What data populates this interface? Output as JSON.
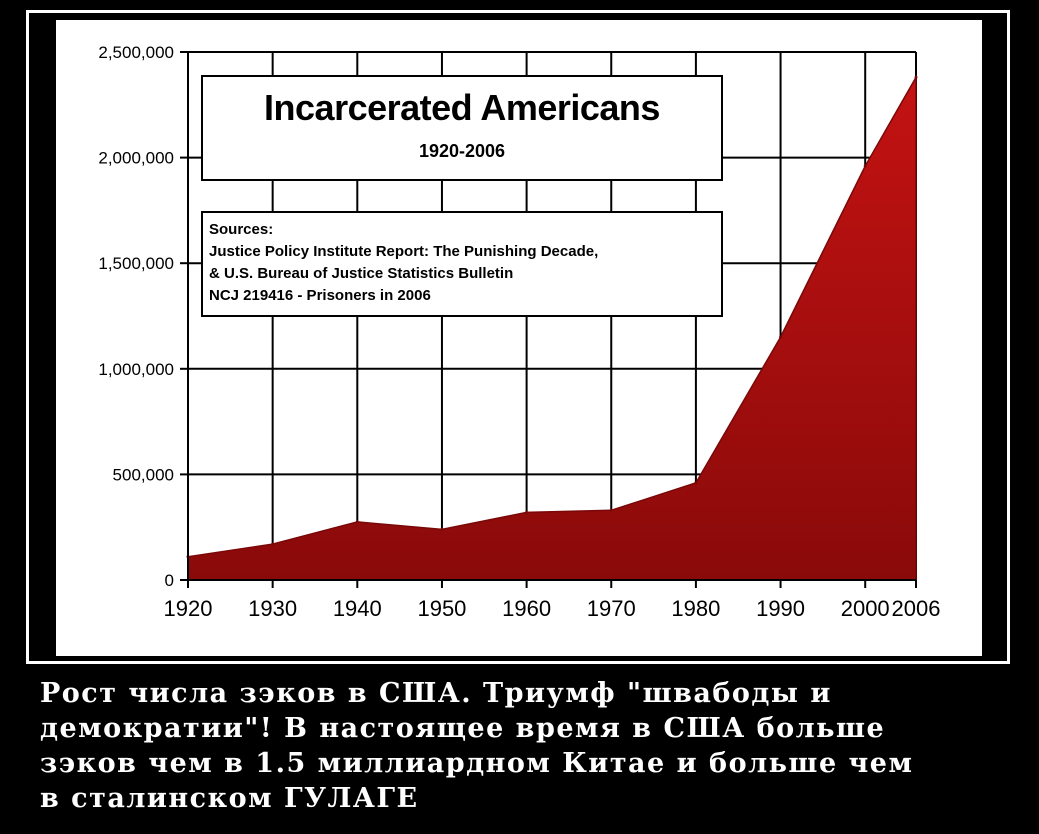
{
  "chart_data": {
    "type": "area",
    "title": "Incarcerated Americans",
    "subtitle": "1920-2006",
    "x": [
      1920,
      1930,
      1940,
      1950,
      1960,
      1970,
      1980,
      1990,
      2000,
      2006
    ],
    "values": [
      110000,
      170000,
      275000,
      240000,
      320000,
      330000,
      460000,
      1150000,
      1960000,
      2380000
    ],
    "ylim": [
      0,
      2500000
    ],
    "y_ticks": [
      0,
      500000,
      1000000,
      1500000,
      2000000,
      2500000
    ],
    "y_tick_labels": [
      "0",
      "500,000",
      "1,000,000",
      "1,500,000",
      "2,000,000",
      "2,500,000"
    ],
    "x_tick_labels": [
      "1920",
      "1930",
      "1940",
      "1950",
      "1960",
      "1970",
      "1980",
      "1990",
      "2000",
      "2006"
    ],
    "grid": true,
    "colors": {
      "fill": "#b01010",
      "fill_dark": "#7a0808",
      "grid": "#000000"
    }
  },
  "sources": [
    "Sources:",
    "Justice Policy Institute Report: The Punishing Decade,",
    "& U.S. Bureau of Justice Statistics Bulletin",
    "NCJ 219416 - Prisoners in 2006"
  ],
  "caption": [
    "Рост числа зэков в США. Триумф \"швабоды и",
    "демократии\"! В настоящее время в США больше",
    "зэков чем в 1.5 миллиардном Китае и больше чем",
    "в сталинском ГУЛАГЕ"
  ]
}
